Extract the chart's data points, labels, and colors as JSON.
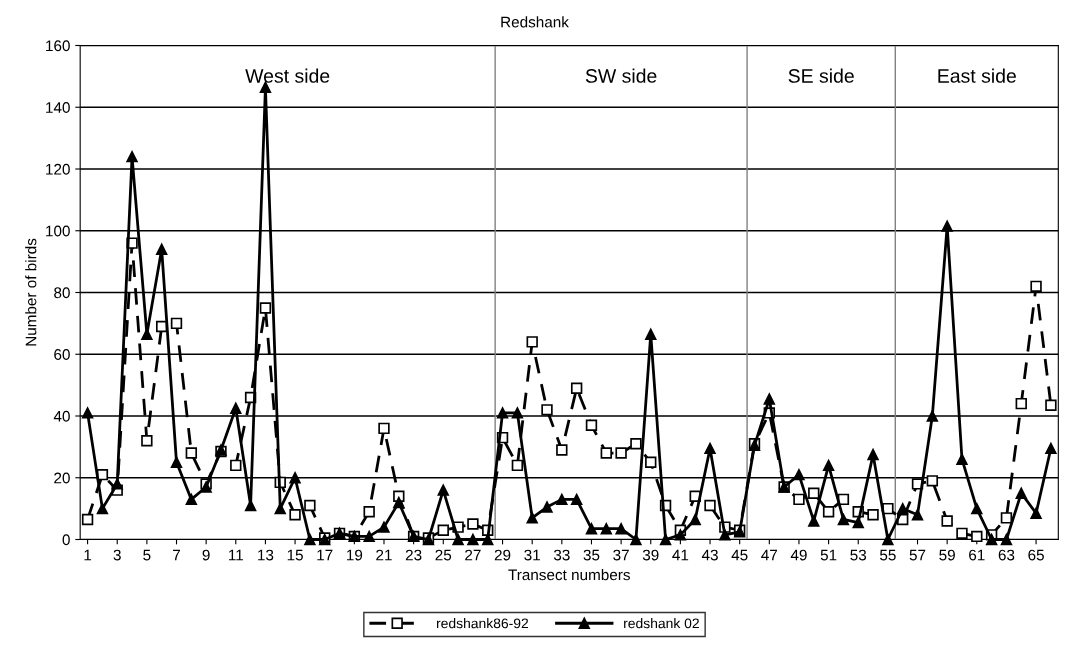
{
  "chart_data": {
    "type": "line",
    "title": "Redshank",
    "xlabel": "Transect numbers",
    "ylabel": "Number of birds",
    "x": [
      1,
      2,
      3,
      4,
      5,
      6,
      7,
      8,
      9,
      10,
      11,
      12,
      13,
      14,
      15,
      16,
      17,
      18,
      19,
      20,
      21,
      22,
      23,
      24,
      25,
      26,
      27,
      28,
      29,
      30,
      31,
      32,
      33,
      34,
      35,
      36,
      37,
      38,
      39,
      40,
      41,
      42,
      43,
      44,
      45,
      46,
      47,
      48,
      49,
      50,
      51,
      52,
      53,
      54,
      55,
      56,
      57,
      58,
      59,
      60,
      61,
      62,
      63,
      64,
      65,
      66
    ],
    "series": [
      {
        "name": "redshank86-92",
        "color": "#000000",
        "marker": "square",
        "line_style": "dashed",
        "values": [
          6.5,
          21,
          16,
          96,
          32,
          69,
          70,
          28,
          18,
          28.5,
          24,
          46,
          75,
          18.5,
          8,
          11,
          0.5,
          2,
          1,
          9,
          36,
          14,
          1,
          0.5,
          3,
          4,
          5,
          3,
          33,
          24,
          64,
          42,
          29,
          49,
          37,
          28,
          28,
          31,
          25,
          11,
          3,
          14,
          11,
          4,
          3,
          31,
          41,
          17,
          13,
          15,
          9,
          13,
          9,
          8,
          10,
          6.5,
          18,
          19,
          6,
          2,
          1,
          1.5,
          7,
          44,
          82,
          43.5
        ]
      },
      {
        "name": "redshank 02",
        "color": "#000000",
        "marker": "triangle",
        "line_style": "solid",
        "values": [
          41,
          10,
          18,
          124,
          66.5,
          94,
          25,
          13,
          17,
          29,
          42.5,
          11,
          146.5,
          10,
          20,
          0,
          0,
          2,
          1,
          1,
          4,
          12,
          1,
          0,
          16,
          0,
          0,
          0,
          41,
          41,
          7,
          10.5,
          13,
          13,
          3.5,
          3.5,
          3.5,
          0,
          66.5,
          0,
          1.5,
          6.5,
          29.5,
          1.5,
          2.5,
          30.5,
          45.5,
          17,
          21,
          6,
          24,
          6.5,
          5.5,
          27.5,
          0,
          10,
          8,
          40,
          101.5,
          26,
          10,
          0,
          0,
          15,
          8.5,
          29.5
        ]
      }
    ],
    "xlim": [
      0.5,
      66.5
    ],
    "xticks": [
      1,
      3,
      5,
      7,
      9,
      11,
      13,
      15,
      17,
      19,
      21,
      23,
      25,
      27,
      29,
      31,
      33,
      35,
      37,
      39,
      41,
      43,
      45,
      47,
      49,
      51,
      53,
      55,
      57,
      59,
      61,
      63,
      65
    ],
    "ylim": [
      0,
      160
    ],
    "yticks": [
      0,
      20,
      40,
      60,
      80,
      100,
      120,
      140,
      160
    ],
    "ref_lines": [
      {
        "axis": "x",
        "value": 28.5,
        "color": "#808080"
      },
      {
        "axis": "x",
        "value": 45.5,
        "color": "#808080"
      },
      {
        "axis": "x",
        "value": 55.5,
        "color": "#808080"
      }
    ],
    "annotations": [
      "West side",
      "SW side",
      "SE side",
      "East side"
    ],
    "grid": "y",
    "legend": "bottom"
  }
}
